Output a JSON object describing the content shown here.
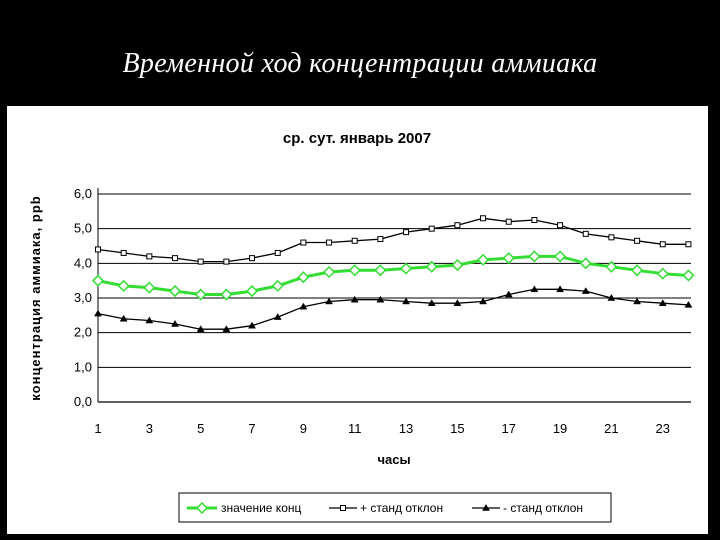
{
  "slide": {
    "title": "Временной ход концентрации аммиака"
  },
  "chart_data": {
    "type": "line",
    "title": "ср. сут. январь 2007",
    "xlabel": "часы",
    "ylabel": "концентрация аммиака, ppb",
    "x": [
      1,
      2,
      3,
      4,
      5,
      6,
      7,
      8,
      9,
      10,
      11,
      12,
      13,
      14,
      15,
      16,
      17,
      18,
      19,
      20,
      21,
      22,
      23,
      24
    ],
    "x_tick_labels": [
      "1",
      "3",
      "5",
      "7",
      "9",
      "11",
      "13",
      "15",
      "17",
      "19",
      "21",
      "23"
    ],
    "x_tick_values": [
      1,
      3,
      5,
      7,
      9,
      11,
      13,
      15,
      17,
      19,
      21,
      23
    ],
    "y_tick_labels": [
      "0,0",
      "1,0",
      "2,0",
      "3,0",
      "4,0",
      "5,0",
      "6,0"
    ],
    "ylim": [
      0,
      6
    ],
    "grid": "horizontal",
    "legend_position": "bottom",
    "colors": {
      "mean": "#33dd33",
      "plus": "#000000",
      "minus": "#000000",
      "grid": "#000000"
    },
    "series": [
      {
        "name": "значение конц",
        "marker": "diamond",
        "values": [
          3.5,
          3.35,
          3.3,
          3.2,
          3.1,
          3.1,
          3.2,
          3.35,
          3.6,
          3.75,
          3.8,
          3.8,
          3.85,
          3.9,
          3.95,
          4.1,
          4.15,
          4.2,
          4.2,
          4.0,
          3.9,
          3.8,
          3.7,
          3.65
        ]
      },
      {
        "name": "+ станд отклон",
        "marker": "square",
        "values": [
          4.4,
          4.3,
          4.2,
          4.15,
          4.05,
          4.05,
          4.15,
          4.3,
          4.6,
          4.6,
          4.65,
          4.7,
          4.9,
          5.0,
          5.1,
          5.3,
          5.2,
          5.25,
          5.1,
          4.85,
          4.75,
          4.65,
          4.55,
          4.55
        ]
      },
      {
        "name": "- станд отклон",
        "marker": "triangle",
        "values": [
          2.55,
          2.4,
          2.35,
          2.25,
          2.1,
          2.1,
          2.2,
          2.45,
          2.75,
          2.9,
          2.95,
          2.95,
          2.9,
          2.85,
          2.85,
          2.9,
          3.1,
          3.25,
          3.25,
          3.2,
          3.0,
          2.9,
          2.85,
          2.8
        ]
      }
    ]
  }
}
